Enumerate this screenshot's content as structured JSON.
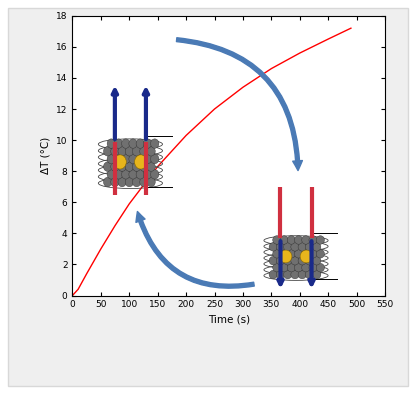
{
  "chart_data": {
    "type": "line",
    "xlabel": "Time (s)",
    "ylabel": "ΔT (°C)",
    "x": [
      0,
      10,
      25,
      50,
      75,
      100,
      150,
      200,
      250,
      300,
      350,
      400,
      450,
      490
    ],
    "values": [
      0,
      0.4,
      1.4,
      3.0,
      4.5,
      5.9,
      8.3,
      10.3,
      12.0,
      13.4,
      14.6,
      15.6,
      16.5,
      17.2
    ],
    "color": "#ff0000",
    "line_style": "solid",
    "xlim": [
      0,
      550
    ],
    "ylim": [
      0,
      18
    ],
    "xticks": [
      0,
      50,
      100,
      150,
      200,
      250,
      300,
      350,
      400,
      450,
      500,
      550
    ],
    "yticks": [
      0,
      2,
      4,
      6,
      8,
      10,
      12,
      14,
      16,
      18
    ],
    "grid": false
  }
}
